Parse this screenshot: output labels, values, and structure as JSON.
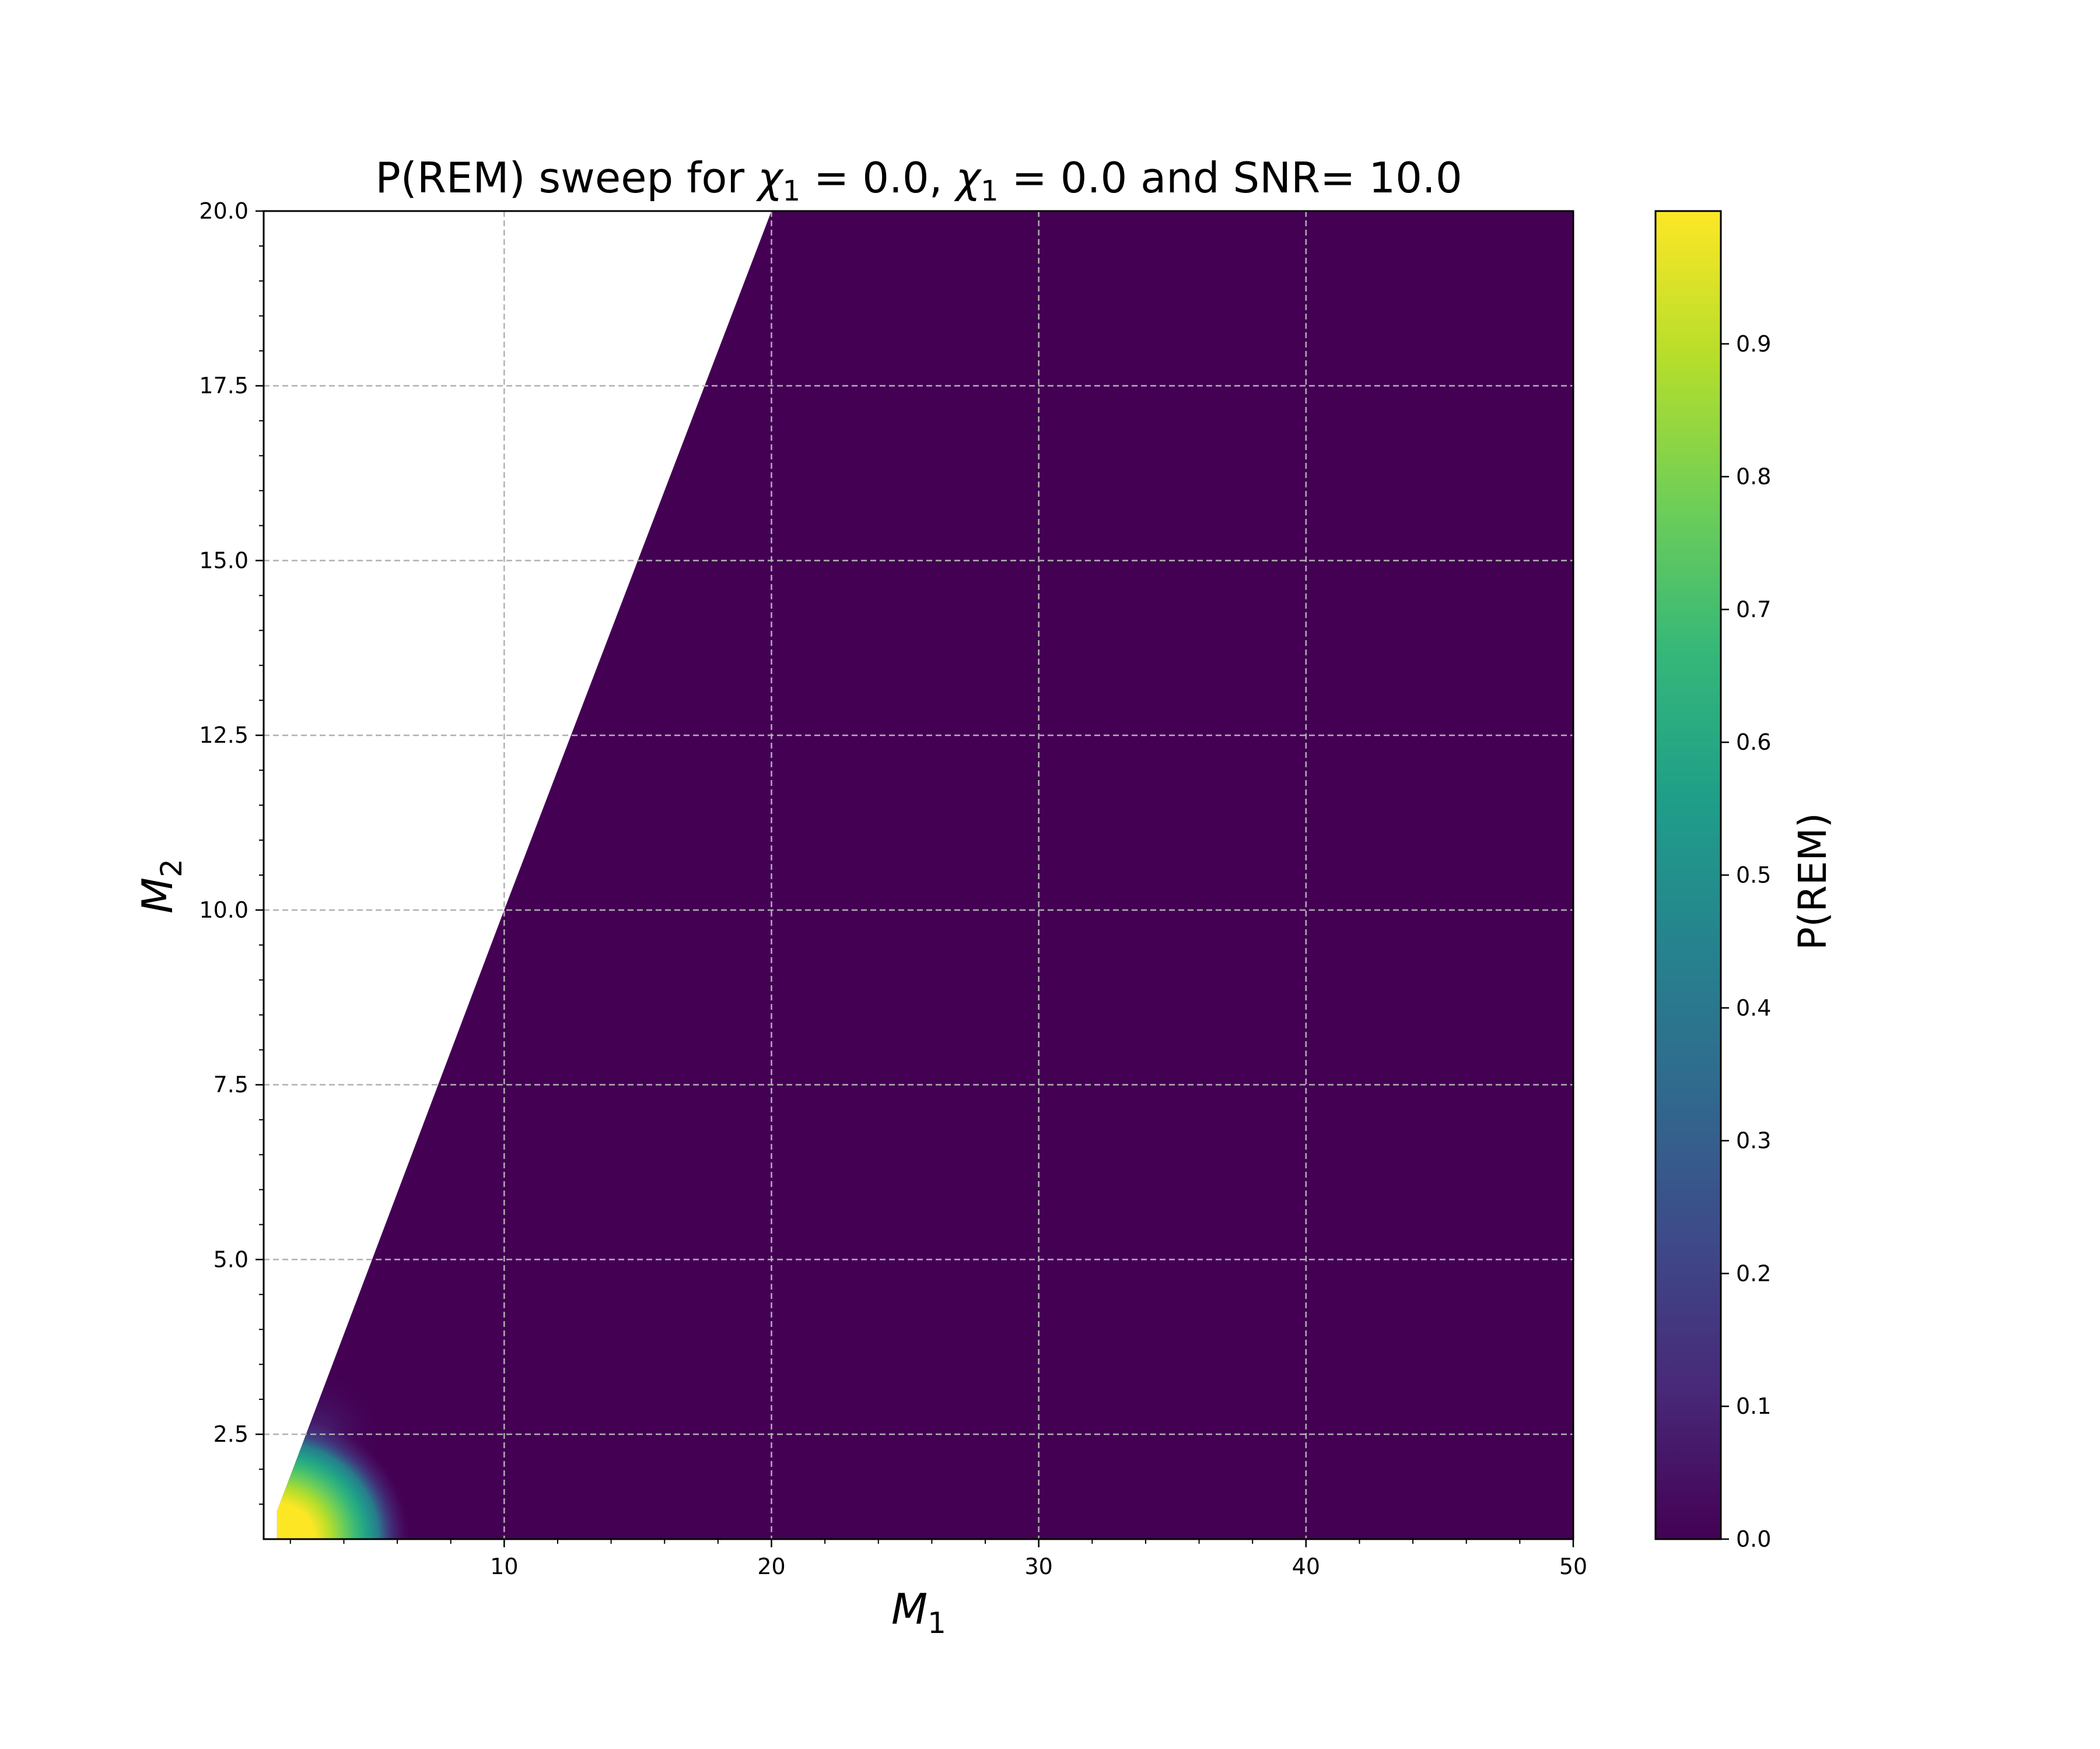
{
  "chart_data": {
    "type": "heatmap",
    "title": "P(REM) sweep for χ₁ =  0.0, χ₁ =  0.0 and SNR= 10.0",
    "title_parts": {
      "prefix": "P(REM) sweep for ",
      "sym1": "χ",
      "sub1": "1",
      "mid1": " =  0.0, ",
      "sym2": "χ",
      "sub2": "1",
      "mid2": " =  0.0 and SNR= 10.0"
    },
    "xlabel": {
      "base": "M",
      "sub": "1"
    },
    "ylabel": {
      "base": "M",
      "sub": "2"
    },
    "colorbar_label": "P(REM)",
    "xlim": [
      1,
      50
    ],
    "ylim": [
      1,
      20
    ],
    "x_ticks": [
      10,
      20,
      30,
      40,
      50
    ],
    "x_tick_labels": [
      "10",
      "20",
      "30",
      "40",
      "50"
    ],
    "y_ticks": [
      2.5,
      5.0,
      7.5,
      10.0,
      12.5,
      15.0,
      17.5,
      20.0
    ],
    "y_tick_labels": [
      "2.5",
      "5.0",
      "7.5",
      "10.0",
      "12.5",
      "15.0",
      "17.5",
      "20.0"
    ],
    "colorbar_ticks": [
      0.0,
      0.1,
      0.2,
      0.3,
      0.4,
      0.5,
      0.6,
      0.7,
      0.8,
      0.9
    ],
    "colorbar_tick_labels": [
      "0.0",
      "0.1",
      "0.2",
      "0.3",
      "0.4",
      "0.5",
      "0.6",
      "0.7",
      "0.8",
      "0.9"
    ],
    "colorbar_range": [
      0.0,
      1.0
    ],
    "colormap": "viridis",
    "grid": true,
    "domain_constraint": "M1 >= M2",
    "region_boundary_points": [
      [
        1.5,
        1.0
      ],
      [
        1.5,
        1.4
      ],
      [
        10,
        10
      ],
      [
        20,
        20
      ],
      [
        50,
        20
      ],
      [
        50,
        1
      ]
    ],
    "high_value_region": {
      "peak": {
        "M1": 1.5,
        "M2": 1.0,
        "value": 1.0
      },
      "samples": [
        {
          "M1": 2.0,
          "M2": 1.3,
          "value": 0.97
        },
        {
          "M1": 2.5,
          "M2": 1.8,
          "value": 0.85
        },
        {
          "M1": 3.0,
          "M2": 1.5,
          "value": 0.65
        },
        {
          "M1": 3.5,
          "M2": 1.3,
          "value": 0.45
        },
        {
          "M1": 4.5,
          "M2": 1.2,
          "value": 0.2
        },
        {
          "M1": 5.5,
          "M2": 1.1,
          "value": 0.03
        },
        {
          "M1": 3.0,
          "M2": 2.5,
          "value": 0.12
        }
      ],
      "background_value": 0.0
    },
    "colors": {
      "cmap_min": "#440154",
      "cmap_max": "#fde725",
      "grid": "#b0b0b0"
    }
  }
}
